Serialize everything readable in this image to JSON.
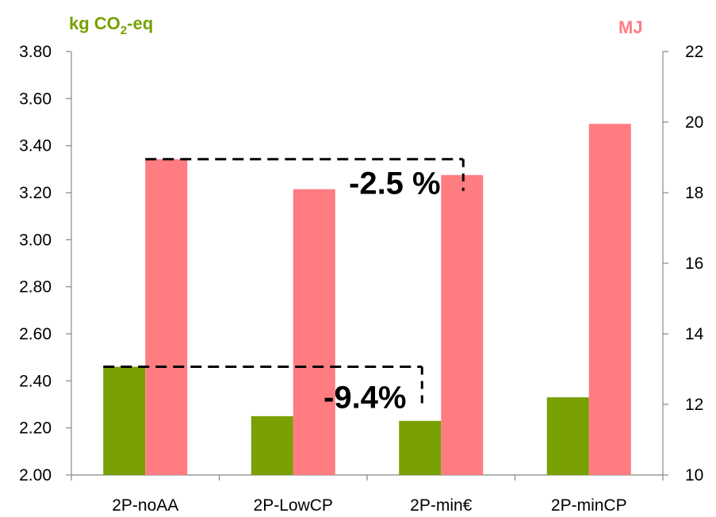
{
  "chart_data": {
    "type": "bar",
    "categories": [
      "2P-noAA",
      "2P-LowCP",
      "2P-min€",
      "2P-minCP"
    ],
    "left_axis": {
      "label_parts": [
        "kg CO",
        "2",
        "-eq"
      ],
      "ylim": [
        2.0,
        3.8
      ],
      "ticks": [
        "2.00",
        "2.20",
        "2.40",
        "2.60",
        "2.80",
        "3.00",
        "3.20",
        "3.40",
        "3.60",
        "3.80"
      ]
    },
    "right_axis": {
      "label": "MJ",
      "ylim": [
        10,
        22
      ],
      "ticks": [
        "10",
        "12",
        "14",
        "16",
        "18",
        "20",
        "22"
      ]
    },
    "series": [
      {
        "axis": "left",
        "color": "#77A000",
        "values": [
          2.46,
          2.25,
          2.23,
          2.33
        ]
      },
      {
        "axis": "right",
        "color": "#FF7C80",
        "values": [
          18.95,
          18.1,
          18.5,
          19.95
        ]
      }
    ],
    "annotations": [
      {
        "text": "-2.5 %",
        "axis": "right",
        "from_category": 0,
        "to_category": 2,
        "ref_value": 18.95
      },
      {
        "text": "-9.4%",
        "axis": "left",
        "from_category": 0,
        "to_category": 2,
        "ref_value": 2.46
      }
    ],
    "colors": {
      "left_label": "#77A000",
      "right_label": "#FF7C80",
      "axis": "#888888"
    },
    "grid": false
  }
}
